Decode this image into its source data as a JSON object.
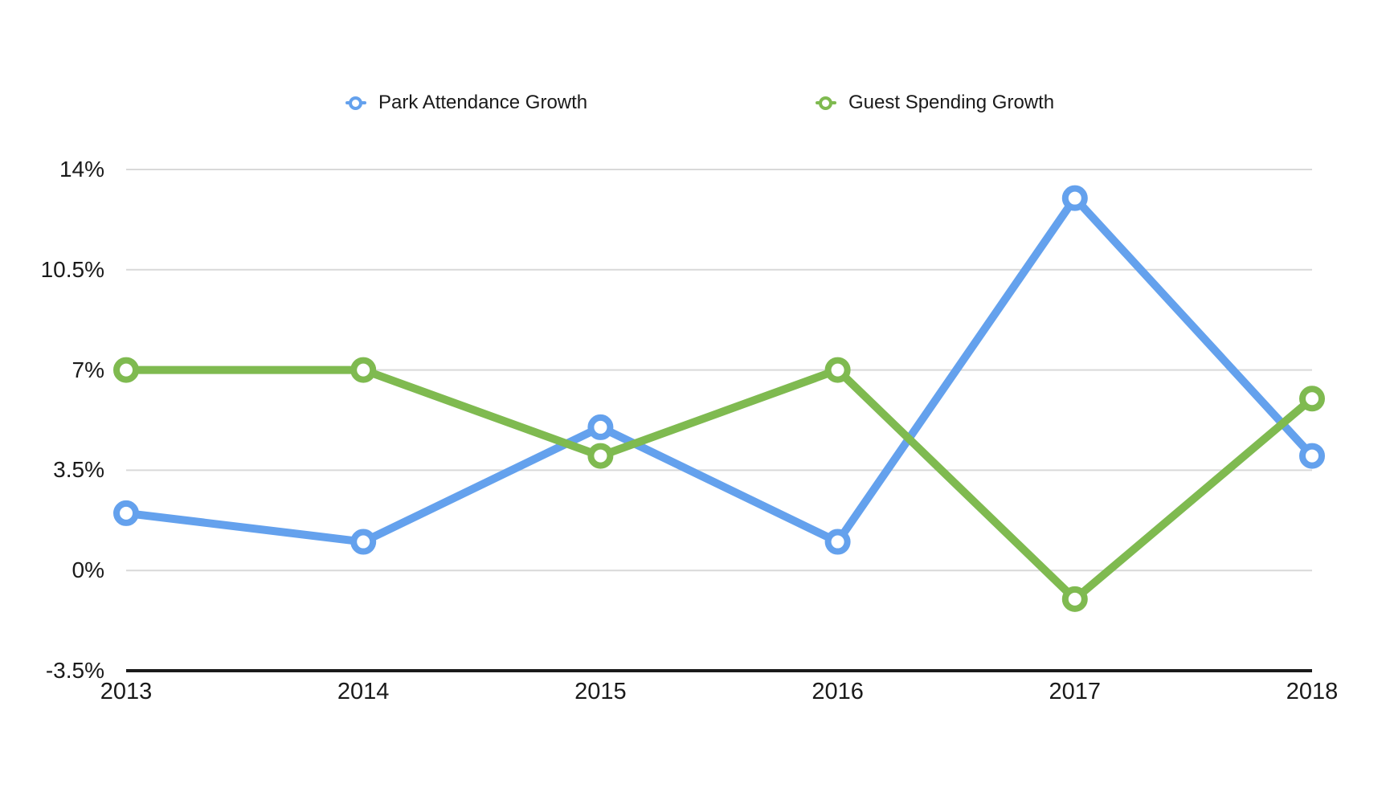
{
  "chart_data": {
    "type": "line",
    "title": "",
    "categories": [
      "2013",
      "2014",
      "2015",
      "2016",
      "2017",
      "2018"
    ],
    "series": [
      {
        "name": "Park Attendance Growth",
        "color": "#64A1ED",
        "values": [
          2,
          1,
          5,
          1,
          13,
          4
        ]
      },
      {
        "name": "Guest Spending Growth",
        "color": "#7FBA50",
        "values": [
          7,
          7,
          4,
          7,
          -1,
          6
        ]
      }
    ],
    "unit": "%",
    "yticks": [
      {
        "value": -3.5,
        "label": "-3.5%"
      },
      {
        "value": 0,
        "label": "0%"
      },
      {
        "value": 3.5,
        "label": "3.5%"
      },
      {
        "value": 7,
        "label": "7%"
      },
      {
        "value": 10.5,
        "label": "10.5%"
      },
      {
        "value": 14,
        "label": "14%"
      }
    ],
    "ylim": [
      -3.5,
      14
    ],
    "grid": "horizontal-only",
    "legend_position": "top",
    "marker_style": "open-circle",
    "colors": {
      "axis": "#1b1b1b",
      "gridline": "#d9d9d9",
      "text": "#1a1a1a",
      "background": "#ffffff"
    }
  }
}
